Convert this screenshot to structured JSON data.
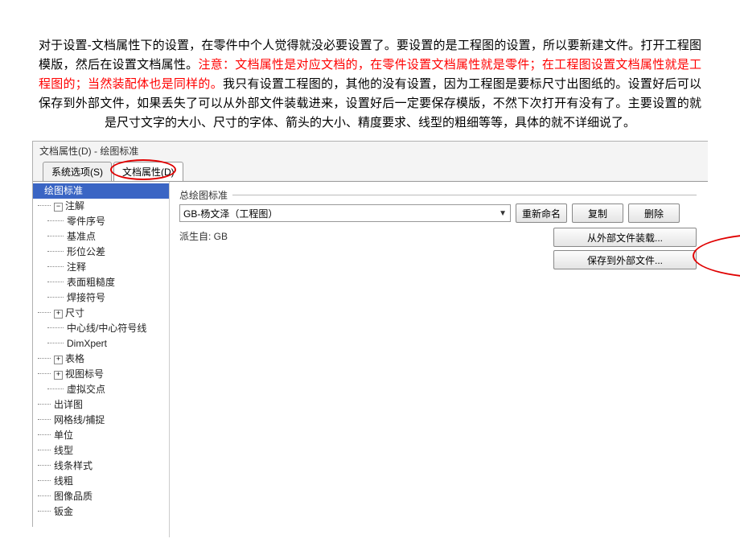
{
  "paragraph": {
    "p1": "对于设置-文档属性下的设置，在零件中个人觉得就没必要设置了。要设置的是工程图的设置，所以要新建文件。打开工程图模版，然后在设置文档属性。",
    "red": "注意：文档属性是对应文档的，在零件设置文档属性就是零件；在工程图设置文档属性就是工程图的；当然装配体也是同样的。",
    "p2": "我只有设置工程图的，其他的没有设置，因为工程图是要标尺寸出图纸的。设置好后可以保存到外部文件，如果丢失了可以从外部文件装载进来，设置好后一定要保存模版，不然下次打开有没有了。主要设置的就是尺寸文字的大小、尺寸的字体、箭头的大小、精度要求、线型的粗细等等，具体的就不详细说了。"
  },
  "titlebar": "文档属性(D) - 绘图标准",
  "tabs": {
    "system": "系统选项(S)",
    "doc": "文档属性(D)"
  },
  "tree": {
    "n0": "绘图标准",
    "n1": "注解",
    "n1a": "零件序号",
    "n1b": "基准点",
    "n1c": "形位公差",
    "n1d": "注释",
    "n1e": "表面粗糙度",
    "n1f": "焊接符号",
    "n2": "尺寸",
    "n2a": "中心线/中心符号线",
    "n2b": "DimXpert",
    "n3": "表格",
    "n4": "视图标号",
    "n4a": "虚拟交点",
    "n5": "出详图",
    "n6": "网格线/捕捉",
    "n7": "单位",
    "n8": "线型",
    "n9": "线条样式",
    "n10": "线粗",
    "n11": "图像品质",
    "n12": "钣金"
  },
  "right": {
    "groupLabel": "总绘图标准",
    "comboValue": "GB-杨文泽（工程图）",
    "rename": "重新命名",
    "copy": "复制",
    "delete": "删除",
    "deriveFrom": "派生自: GB",
    "loadExternal": "从外部文件装载...",
    "saveExternal": "保存到外部文件..."
  },
  "expand": {
    "minus": "−",
    "plus": "+"
  }
}
